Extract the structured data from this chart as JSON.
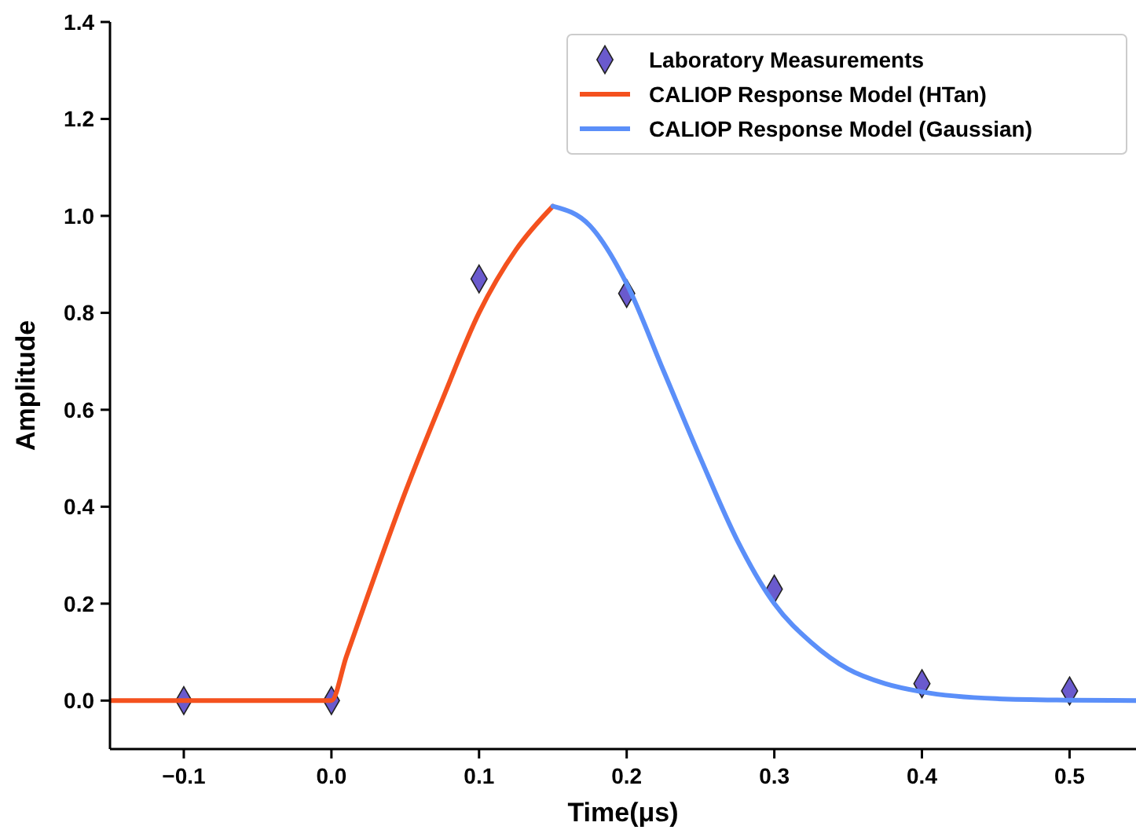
{
  "chart_data": {
    "type": "line",
    "xlabel": "Time(μs)",
    "ylabel": "Amplitude",
    "xlim": [
      -0.15,
      0.545
    ],
    "ylim": [
      -0.1,
      1.4
    ],
    "xticks": [
      {
        "value": -0.1,
        "label": "−0.1"
      },
      {
        "value": 0,
        "label": "0.0"
      },
      {
        "value": 0.1,
        "label": "0.1"
      },
      {
        "value": 0.2,
        "label": "0.2"
      },
      {
        "value": 0.3,
        "label": "0.3"
      },
      {
        "value": 0.4,
        "label": "0.4"
      },
      {
        "value": 0.5,
        "label": "0.5"
      }
    ],
    "yticks": [
      {
        "value": 0,
        "label": "0.0"
      },
      {
        "value": 0.2,
        "label": "0.2"
      },
      {
        "value": 0.4,
        "label": "0.4"
      },
      {
        "value": 0.6,
        "label": "0.6"
      },
      {
        "value": 0.8,
        "label": "0.8"
      },
      {
        "value": 1,
        "label": "1.0"
      },
      {
        "value": 1.2,
        "label": "1.2"
      },
      {
        "value": 1.4,
        "label": "1.4"
      }
    ],
    "grid": false,
    "legend": "top right",
    "series": [
      {
        "name": "Laboratory Measurements",
        "type": "scatter",
        "marker": "diamond",
        "color": "#6a5acd",
        "x": [
          -0.1,
          0,
          0.1,
          0.2,
          0.3,
          0.4,
          0.5
        ],
        "values": [
          0,
          0,
          0.87,
          0.84,
          0.23,
          0.035,
          0.02
        ]
      },
      {
        "name": "CALIOP Response Model (HTan)",
        "marker": "none",
        "line_style": "solid",
        "color": "#f4511e",
        "x": [
          -0.15,
          0,
          0.01,
          0.025,
          0.05,
          0.075,
          0.1,
          0.125,
          0.15
        ],
        "values": [
          0,
          0,
          0.09,
          0.22,
          0.43,
          0.62,
          0.8,
          0.93,
          1.02
        ]
      },
      {
        "name": "CALIOP Response Model (Gaussian)",
        "marker": "none",
        "line_style": "solid",
        "color": "#5b8ff9",
        "x": [
          0.15,
          0.175,
          0.2,
          0.225,
          0.25,
          0.275,
          0.3,
          0.325,
          0.35,
          0.375,
          0.4,
          0.45,
          0.5,
          0.545
        ],
        "values": [
          1.02,
          0.98,
          0.86,
          0.68,
          0.5,
          0.33,
          0.2,
          0.12,
          0.065,
          0.035,
          0.018,
          0.004,
          0.001,
          0
        ]
      }
    ]
  }
}
